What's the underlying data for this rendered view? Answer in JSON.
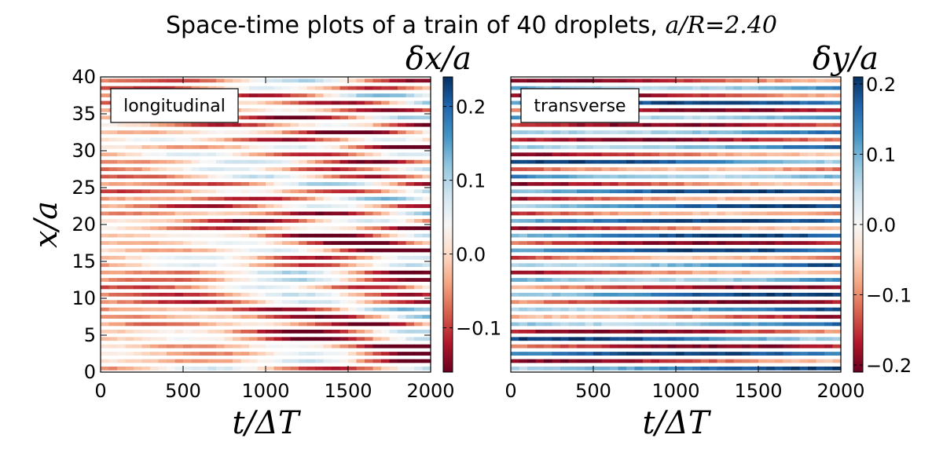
{
  "title_text": "Space-time plots of a train of 40 droplets, ",
  "title_math": "a/R",
  "title_eq": "=",
  "title_value": "2.40",
  "chart_data": [
    {
      "type": "heatmap",
      "panel_label": "longitudinal",
      "xlabel": "t/ΔT",
      "ylabel": "x/a",
      "colorbar_label": "δx/a",
      "xlim": [
        0,
        2000
      ],
      "ylim": [
        0,
        40
      ],
      "xticks": [
        "0",
        "500",
        "1000",
        "1500",
        "2000"
      ],
      "yticks": [
        "0",
        "5",
        "10",
        "15",
        "20",
        "25",
        "30",
        "35",
        "40"
      ],
      "color_range": [
        -0.16,
        0.24
      ],
      "colorbar_ticks": [
        "−0.1",
        "0.0",
        "0.1",
        "0.2"
      ],
      "colormap": "RdBu",
      "droplets": 40
    },
    {
      "type": "heatmap",
      "panel_label": "transverse",
      "xlabel": "t/ΔT",
      "ylabel": "",
      "colorbar_label": "δy/a",
      "xlim": [
        0,
        2000
      ],
      "ylim": [
        0,
        40
      ],
      "xticks": [
        "0",
        "500",
        "1000",
        "1500",
        "2000"
      ],
      "yticks": [],
      "color_range": [
        -0.21,
        0.21
      ],
      "colorbar_ticks": [
        "−0.2",
        "−0.1",
        "0.0",
        "0.1",
        "0.2"
      ],
      "colormap": "RdBu",
      "droplets": 40
    }
  ]
}
